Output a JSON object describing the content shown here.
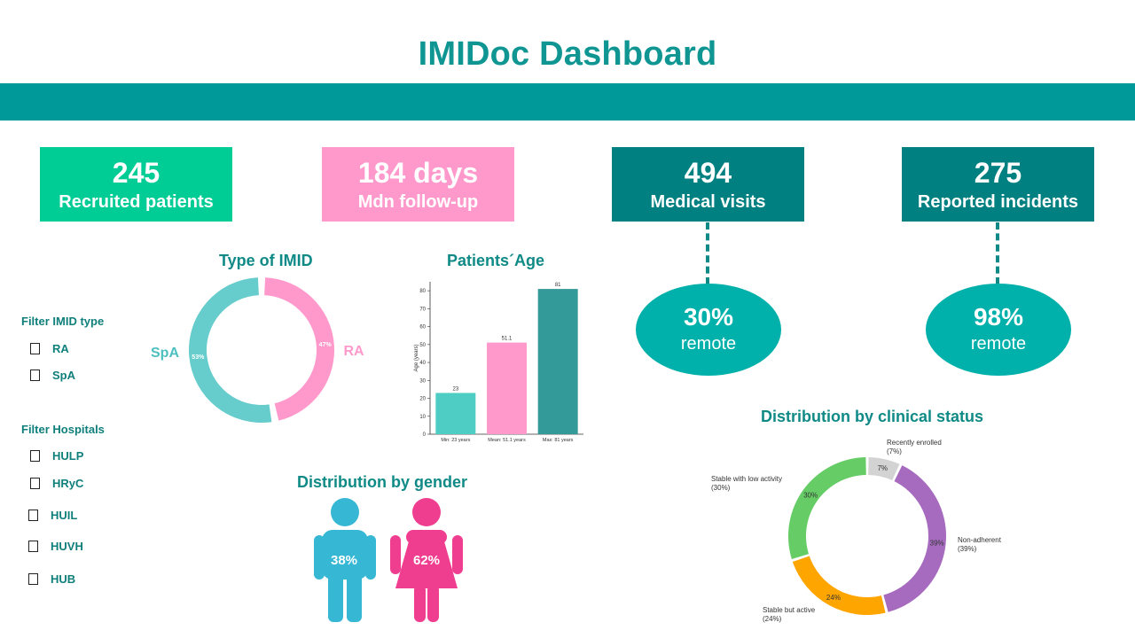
{
  "header": {
    "title": "IMIDoc Dashboard"
  },
  "kpis": [
    {
      "value": "245",
      "label": "Recruited patients",
      "color": "#00cc96"
    },
    {
      "value": "184 days",
      "label": "Mdn follow-up",
      "color": "#ff99cc"
    },
    {
      "value": "494",
      "label": "Medical visits",
      "color": "#008080"
    },
    {
      "value": "275",
      "label": "Reported incidents",
      "color": "#008080"
    }
  ],
  "remote": [
    {
      "value": "30%",
      "label": "remote"
    },
    {
      "value": "98%",
      "label": "remote"
    }
  ],
  "filters": {
    "imid_title": "Filter IMID type",
    "imid": [
      "RA",
      "SpA"
    ],
    "hospitals_title": "Filter Hospitals",
    "hospitals": [
      "HULP",
      "HRyC",
      "HUIL",
      "HUVH",
      "HUB"
    ]
  },
  "type_imid": {
    "title": "Type of IMID",
    "left_label": "SpA",
    "right_label": "RA"
  },
  "age": {
    "title": "Patients´Age"
  },
  "gender": {
    "title": "Distribution by gender",
    "male_pct": "38%",
    "female_pct": "62%"
  },
  "clinical": {
    "title": "Distribution by clinical status"
  },
  "chart_data": [
    {
      "type": "pie",
      "title": "Type of IMID",
      "categories": [
        "RA",
        "SpA"
      ],
      "values": [
        47,
        53
      ],
      "value_labels": [
        "47%",
        "53%"
      ],
      "colors": [
        "#ff99cc",
        "#66cccc"
      ]
    },
    {
      "type": "bar",
      "title": "Patients´Age",
      "categories": [
        "Min: 23 years",
        "Mean: 51.1 years",
        "Max: 81 years"
      ],
      "values": [
        23,
        51.1,
        81
      ],
      "value_labels": [
        "23",
        "51.1",
        "81"
      ],
      "ylabel": "Age (years)",
      "ylim": [
        0,
        85
      ],
      "yticks": [
        "0",
        "10",
        "20",
        "30",
        "40",
        "50",
        "60",
        "70",
        "80"
      ],
      "colors": [
        "#4ecdc4",
        "#ff99cc",
        "#339999"
      ]
    },
    {
      "type": "pie",
      "title": "Distribution by clinical status",
      "categories": [
        "Recently enrolled\n(7%)",
        "Non-adherent\n(39%)",
        "Stable but active\n(24%)",
        "Stable with low activity\n(30%)"
      ],
      "values": [
        7,
        39,
        24,
        30
      ],
      "value_labels": [
        "7%",
        "39%",
        "24%",
        "30%"
      ],
      "colors": [
        "#d3d3d3",
        "#a66bbe",
        "#ffa500",
        "#66cc66"
      ]
    }
  ]
}
